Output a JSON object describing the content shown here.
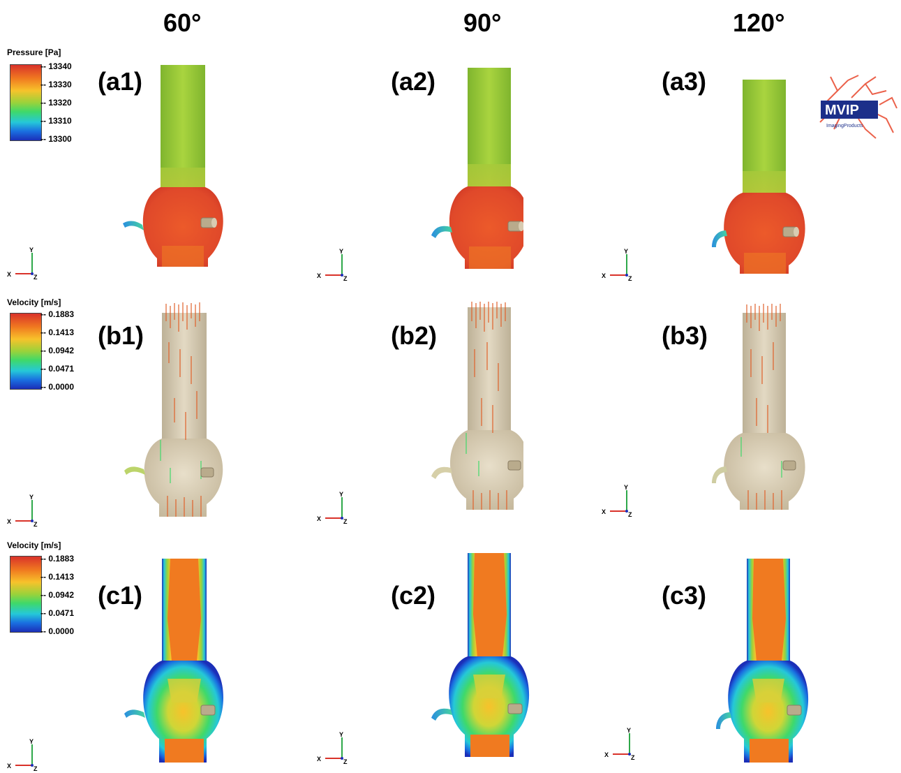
{
  "columns": [
    "60°",
    "90°",
    "120°"
  ],
  "panels": {
    "row_a": [
      "(a1)",
      "(a2)",
      "(a3)"
    ],
    "row_b": [
      "(b1)",
      "(b2)",
      "(b3)"
    ],
    "row_c": [
      "(c1)",
      "(c2)",
      "(c3)"
    ]
  },
  "legends": {
    "pressure": {
      "title": "Pressure [Pa]",
      "ticks": [
        "-- 13340",
        "-- 13330",
        "-- 13320",
        "-- 13310",
        "-- 13300"
      ]
    },
    "velocity_b": {
      "title": "Velocity [m/s]",
      "ticks": [
        "-- 0.1883",
        "-- 0.1413",
        "-- 0.0942",
        "-- 0.0471",
        "-- 0.0000"
      ]
    },
    "velocity_c": {
      "title": "Velocity [m/s]",
      "ticks": [
        "-- 0.1883",
        "-- 0.1413",
        "-- 0.0942",
        "-- 0.0471",
        "-- 0.0000"
      ]
    }
  },
  "axis_triad": {
    "x": "X",
    "y": "Y",
    "z": "Z"
  },
  "logo": {
    "text": "MVIP",
    "subtext": "ImagingProducts"
  },
  "colors": {
    "colormap": [
      "#d9322a",
      "#f07a20",
      "#f7c22b",
      "#9ad23a",
      "#3fd96a",
      "#25c8d8",
      "#1a6fe0",
      "#1b2fb8"
    ],
    "pressure_surface_pipe": "#9cc93a",
    "pressure_surface_sac": "#e8552b",
    "vessel_tan": "#d6cbb4"
  }
}
